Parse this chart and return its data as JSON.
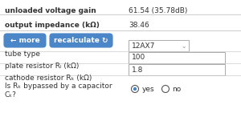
{
  "bg_color": "#ffffff",
  "row1_label": "unloaded voltage gain",
  "row1_value": "61.54 (35.78dB)",
  "row2_label": "output impedance (kΩ)",
  "row2_value": "38.46",
  "btn1_text": "← more",
  "btn2_text": "recalculate ↻",
  "btn_color": "#4a86c8",
  "btn_text_color": "#ffffff",
  "field_label1": "tube type",
  "field_value1": "12AX7",
  "field_label2": "plate resistor Rₗ (kΩ)",
  "field_value2": "100",
  "field_label3": "cathode resistor Rₖ (kΩ)",
  "field_value3": "1.8",
  "field_label4a": "Is Rₖ bypassed by a capacitor",
  "field_label4b": "Cₖ?",
  "radio_yes": "yes",
  "radio_no": "no",
  "separator_color": "#cccccc",
  "text_color": "#333333",
  "input_bg": "#ffffff",
  "input_border": "#aaaaaa",
  "dropdown_border": "#aaaaaa",
  "font_size": 6.5,
  "bold_font_size": 6.5
}
